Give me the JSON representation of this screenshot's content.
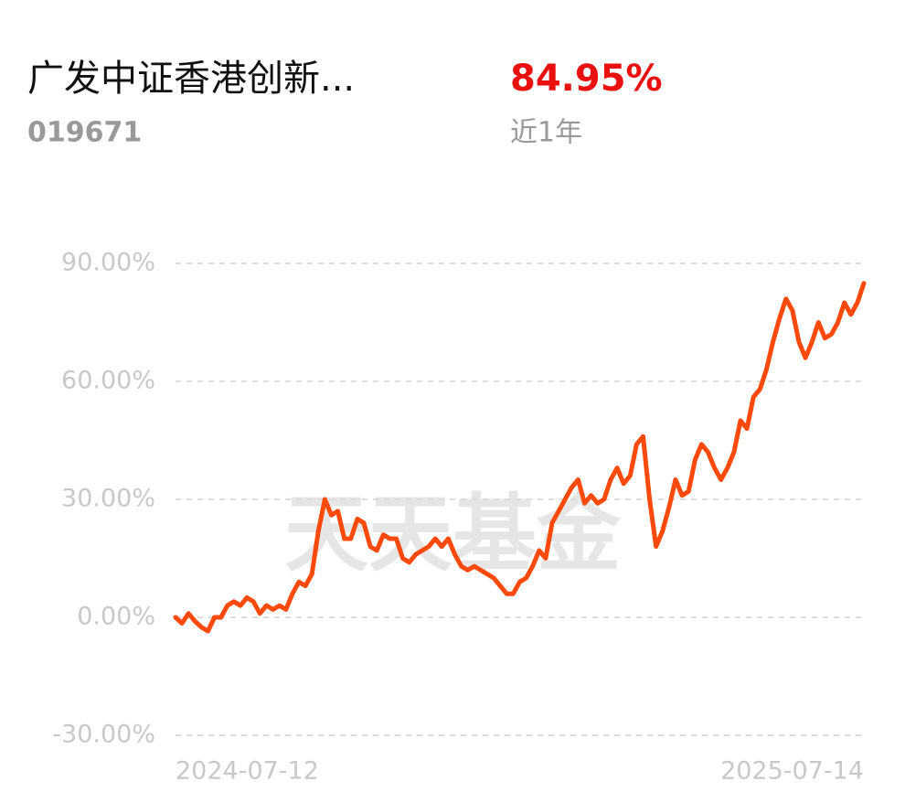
{
  "chart_data": {
    "type": "line",
    "title": "广发中证香港创新...",
    "code": "019671",
    "headline": {
      "value": 84.95,
      "label": "84.95%"
    },
    "period": "近1年",
    "watermark": "天天基金",
    "color": "#ff4a0c",
    "grid": true,
    "ylim": [
      -30,
      90
    ],
    "yticks": [
      {
        "value": -30,
        "label": "-30.00%"
      },
      {
        "value": 0,
        "label": "0.00%"
      },
      {
        "value": 30,
        "label": "30.00%"
      },
      {
        "value": 60,
        "label": "60.00%"
      },
      {
        "value": 90,
        "label": "90.00%"
      }
    ],
    "categories": [
      "2024-07-12",
      null,
      null,
      null,
      null,
      null,
      null,
      null,
      null,
      null,
      null,
      null,
      null,
      null,
      null,
      null,
      null,
      null,
      null,
      null,
      null,
      null,
      null,
      null,
      null,
      null,
      null,
      null,
      null,
      null,
      null,
      null,
      null,
      null,
      null,
      null,
      null,
      null,
      null,
      null,
      null,
      null,
      null,
      null,
      null,
      null,
      null,
      null,
      null,
      null,
      null,
      null,
      null,
      null,
      null,
      null,
      null,
      null,
      null,
      null,
      null,
      null,
      null,
      null,
      null,
      null,
      null,
      null,
      null,
      null,
      null,
      null,
      null,
      null,
      null,
      null,
      null,
      null,
      null,
      null,
      null,
      null,
      null,
      null,
      null,
      null,
      null,
      null,
      null,
      null,
      null,
      null,
      null,
      null,
      null,
      null,
      null,
      null,
      null,
      null,
      null,
      null,
      null,
      null,
      null,
      null,
      "2025-07-14"
    ],
    "values": [
      0,
      -1.5,
      1,
      -1,
      -2.5,
      -3.5,
      0,
      0,
      3,
      4,
      3,
      5,
      4,
      1,
      3,
      2,
      3,
      2,
      6,
      9,
      8,
      11,
      22,
      30,
      26,
      27,
      20,
      20,
      25,
      24,
      18,
      17,
      21,
      20,
      20,
      15,
      14,
      16,
      17,
      18,
      20,
      18,
      20,
      16,
      13,
      12,
      13,
      12,
      11,
      10,
      8,
      6,
      6,
      9,
      10,
      13,
      17,
      15,
      24,
      27,
      30,
      33,
      35,
      29,
      31,
      29,
      30,
      35,
      38,
      34,
      36,
      44,
      46,
      30,
      18,
      22,
      28,
      35,
      31,
      32,
      40,
      44,
      42,
      38,
      35,
      38,
      42,
      50,
      48,
      56,
      58,
      63,
      70,
      76,
      81,
      78,
      70,
      66,
      70,
      75,
      71,
      72,
      75,
      80,
      77,
      80,
      84.95
    ]
  }
}
